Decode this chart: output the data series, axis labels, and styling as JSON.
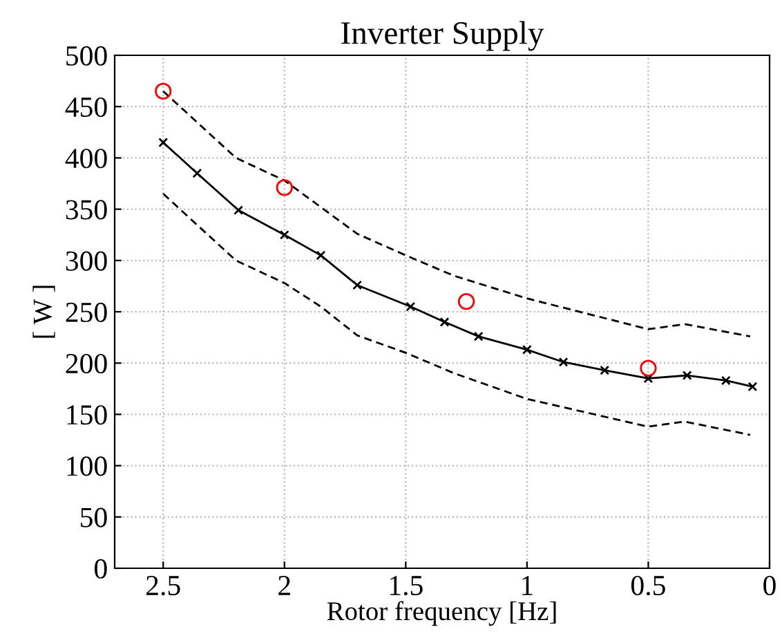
{
  "chart_data": {
    "type": "line",
    "title": "Inverter Supply",
    "xlabel": "Rotor frequency [Hz]",
    "ylabel": "[ W ]",
    "series": [
      {
        "color": "#000000",
        "marker": "cross",
        "line_style": "solid",
        "x": [
          2.5,
          2.36,
          2.19,
          2.0,
          1.85,
          1.7,
          1.48,
          1.34,
          1.2,
          1.0,
          0.85,
          0.68,
          0.5,
          0.34,
          0.18,
          0.07
        ],
        "values": [
          415,
          385,
          349,
          325,
          305,
          276,
          255,
          240,
          226,
          213,
          201,
          193,
          185,
          188,
          183,
          177
        ]
      },
      {
        "color": "#000000",
        "marker": "none",
        "line_style": "dashed",
        "x": [
          2.5,
          2.2,
          2.0,
          1.7,
          1.5,
          1.3,
          1.0,
          0.5,
          0.35,
          0.08
        ],
        "values": [
          465,
          400,
          378,
          326,
          305,
          285,
          263,
          233,
          238,
          226
        ]
      },
      {
        "color": "#000000",
        "marker": "none",
        "line_style": "dashed",
        "x": [
          2.5,
          2.2,
          2.0,
          1.85,
          1.7,
          1.5,
          1.3,
          1.0,
          0.5,
          0.35,
          0.08
        ],
        "values": [
          365,
          300,
          278,
          255,
          227,
          210,
          190,
          165,
          138,
          143,
          130
        ]
      },
      {
        "type": "scatter",
        "color": "#ff0000",
        "marker": "circle",
        "x": [
          2.5,
          2.0,
          1.25,
          0.5
        ],
        "values": [
          465,
          371,
          260,
          195
        ]
      }
    ],
    "xlim": [
      2.7,
      0
    ],
    "xticks": [
      2.5,
      2,
      1.5,
      1,
      0.5,
      0
    ],
    "ylim": [
      0,
      500
    ],
    "yticks": [
      0,
      50,
      100,
      150,
      200,
      250,
      300,
      350,
      400,
      450,
      500
    ],
    "grid": true,
    "legend": false
  }
}
